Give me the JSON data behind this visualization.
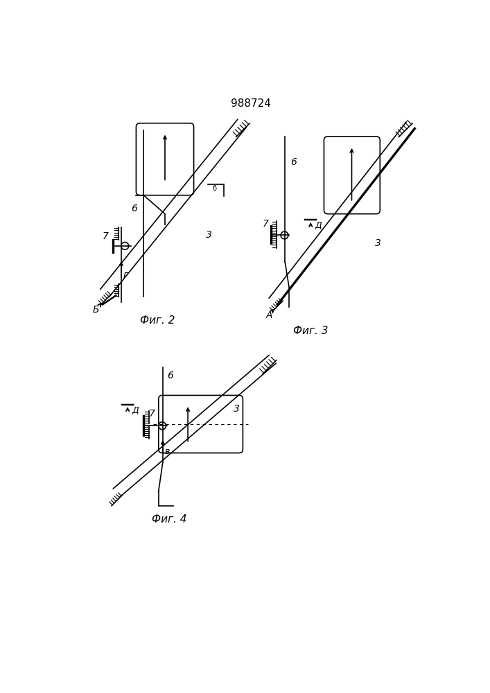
{
  "title": "988724",
  "background_color": "#ffffff",
  "line_color": "#000000",
  "fig2_label": "Фиг. 2",
  "fig3_label": "Фиг. 3",
  "fig4_label": "Фиг. 4",
  "label_6": "6",
  "label_7": "7",
  "label_3": "3",
  "label_b": "б",
  "label_B_upper": "Б",
  "label_g": "г",
  "label_A": "A",
  "label_D": "Д",
  "label_v": "в"
}
